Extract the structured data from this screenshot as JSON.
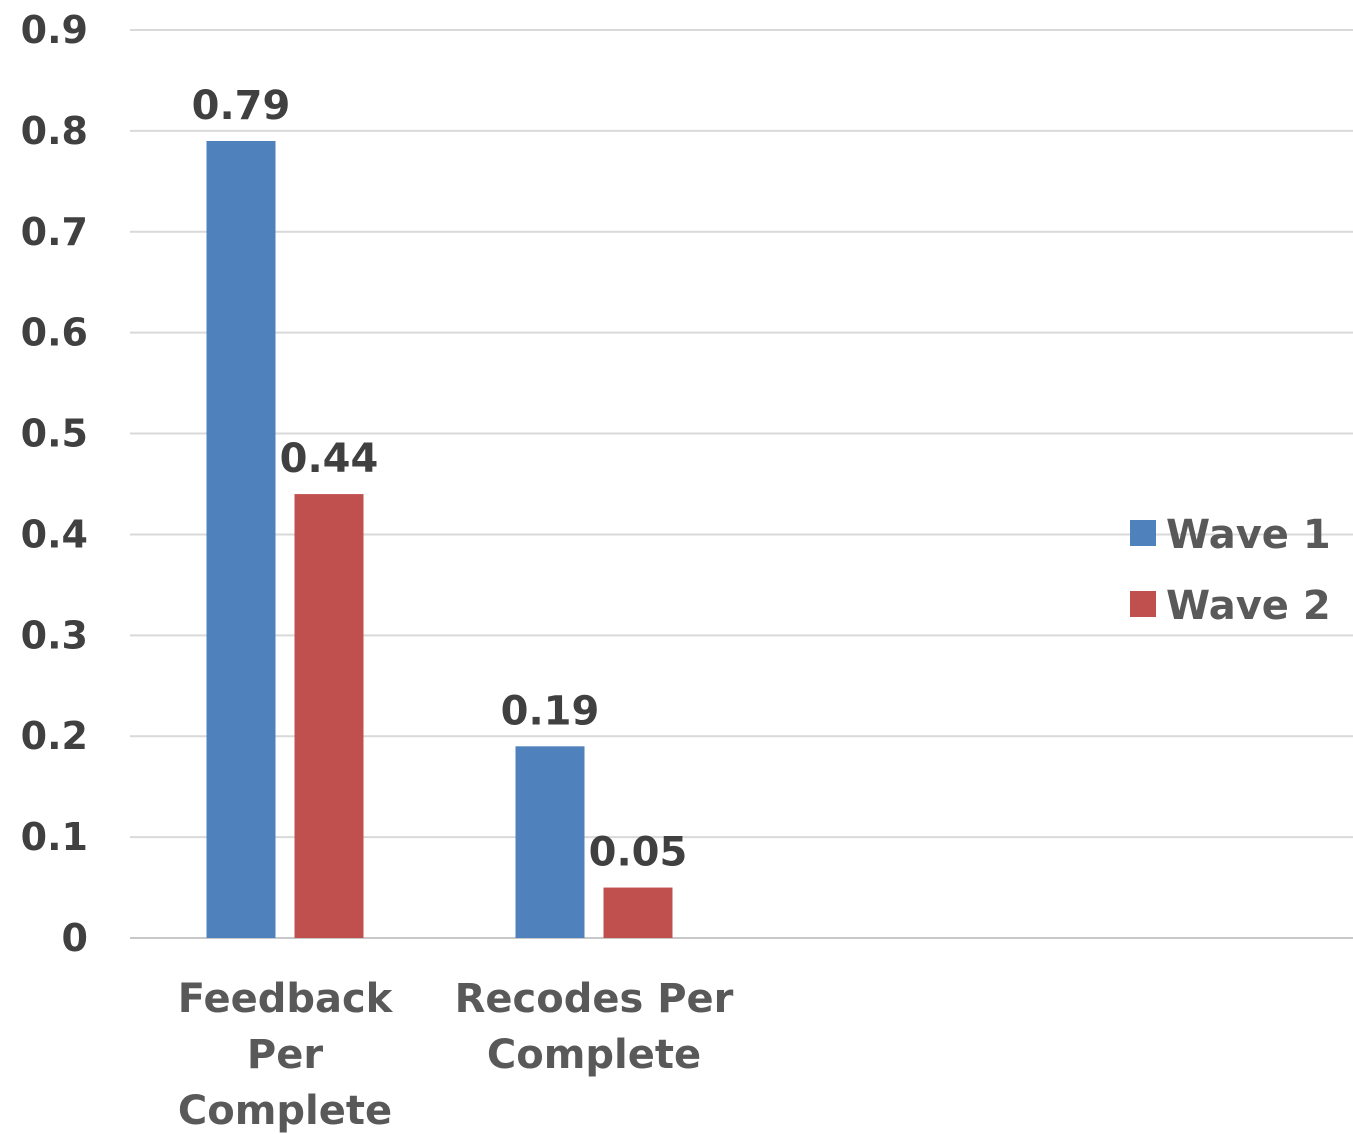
{
  "chart_data": {
    "type": "bar",
    "categories": [
      [
        "Feedback",
        "Per",
        "Complete"
      ],
      [
        "Recodes Per",
        "Complete"
      ]
    ],
    "series": [
      {
        "name": "Wave 1",
        "values": [
          0.79,
          0.19
        ],
        "color": "#4F81BD"
      },
      {
        "name": "Wave 2",
        "values": [
          0.44,
          0.05
        ],
        "color": "#C0504D"
      }
    ],
    "data_labels": [
      [
        "0.79",
        "0.19"
      ],
      [
        "0.44",
        "0.05"
      ]
    ],
    "ylim": [
      0,
      0.9
    ],
    "yticks": [
      "0",
      "0.1",
      "0.2",
      "0.3",
      "0.4",
      "0.5",
      "0.6",
      "0.7",
      "0.8",
      "0.9"
    ],
    "grid": true,
    "legend": "right",
    "title": "",
    "xlabel": "",
    "ylabel": ""
  }
}
